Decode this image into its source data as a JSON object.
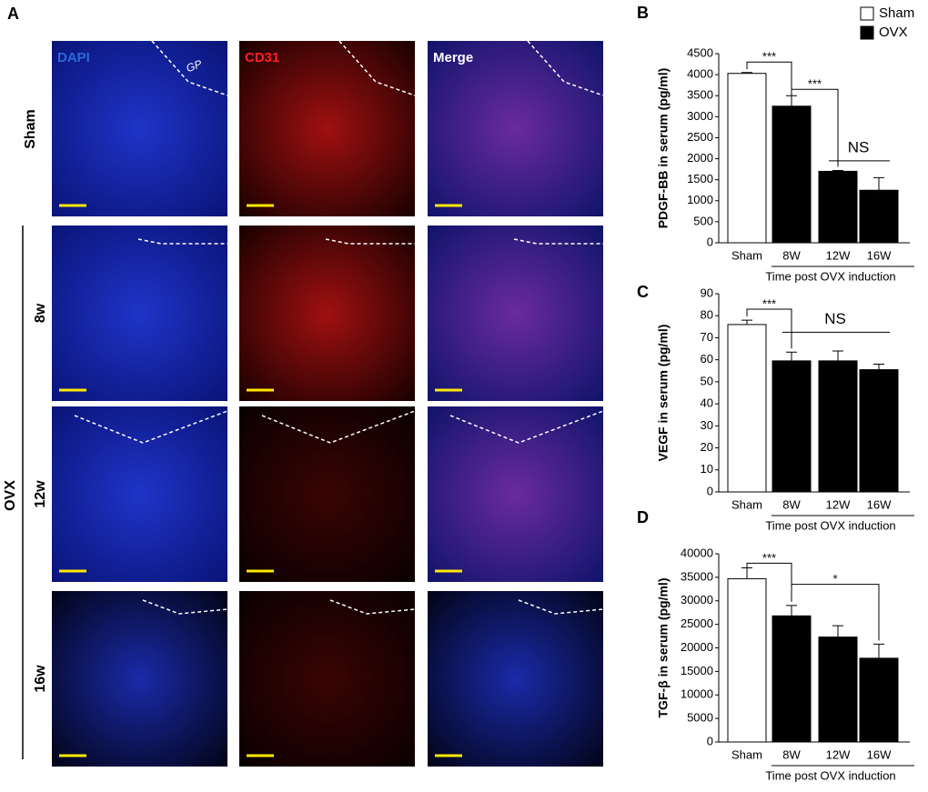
{
  "panel_a": {
    "label": "A",
    "columns": [
      "DAPI",
      "CD31",
      "Merge"
    ],
    "gp_label": "GP",
    "sham_row": "Sham",
    "ovx_group": "OVX",
    "ovx_rows": [
      "8w",
      "12w",
      "16w"
    ]
  },
  "chart_data": [
    {
      "type": "bar",
      "label": "B",
      "ylabel": "PDGF-BB in serum (pg/ml)",
      "xlabel": "Time post OVX induction",
      "categories": [
        "Sham",
        "8W",
        "12W",
        "16W"
      ],
      "values": [
        4030,
        3250,
        1700,
        1250
      ],
      "errors": [
        20,
        250,
        20,
        300
      ],
      "colors": [
        "#ffffff",
        "#000000",
        "#000000",
        "#000000"
      ],
      "legend": [
        {
          "name": "Sham",
          "color": "#ffffff"
        },
        {
          "name": "OVX",
          "color": "#000000"
        }
      ],
      "annotations": [
        "***",
        "***",
        "NS"
      ],
      "ylim": [
        0,
        4500
      ],
      "yticks": [
        0,
        500,
        1000,
        1500,
        2000,
        2500,
        3000,
        3500,
        4000,
        4500
      ]
    },
    {
      "type": "bar",
      "label": "C",
      "ylabel": "VEGF in serum (pg/ml)",
      "xlabel": "Time post OVX induction",
      "categories": [
        "Sham",
        "8W",
        "12W",
        "16W"
      ],
      "values": [
        76,
        59.5,
        59.5,
        55.5
      ],
      "errors": [
        2,
        4,
        4.5,
        2.5
      ],
      "colors": [
        "#ffffff",
        "#000000",
        "#000000",
        "#000000"
      ],
      "annotations": [
        "***",
        "NS"
      ],
      "ylim": [
        0,
        90
      ],
      "yticks": [
        0,
        10,
        20,
        30,
        40,
        50,
        60,
        70,
        80,
        90
      ]
    },
    {
      "type": "bar",
      "label": "D",
      "ylabel": "TGF-β in serum (pg/ml)",
      "xlabel": "Time post OVX induction",
      "categories": [
        "Sham",
        "8W",
        "12W",
        "16W"
      ],
      "values": [
        34700,
        26800,
        22300,
        17800
      ],
      "errors": [
        2300,
        2200,
        2400,
        3000
      ],
      "colors": [
        "#ffffff",
        "#000000",
        "#000000",
        "#000000"
      ],
      "annotations": [
        "***",
        "*"
      ],
      "ylim": [
        0,
        40000
      ],
      "yticks": [
        0,
        5000,
        10000,
        15000,
        20000,
        25000,
        30000,
        35000,
        40000
      ]
    }
  ]
}
